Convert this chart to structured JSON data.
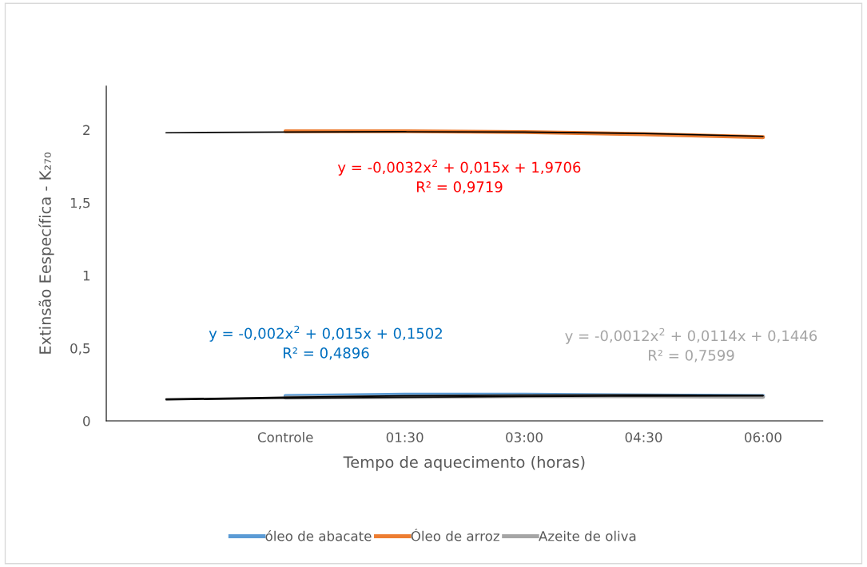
{
  "chart_data": {
    "type": "line",
    "xlabel": "Tempo de aquecimento (horas)",
    "ylabel": "Extinsão Eespecífica - K₂₇₀",
    "categories": [
      null,
      "Controle",
      "01:30",
      "03:00",
      "04:30",
      "06:00"
    ],
    "series": [
      {
        "name": "óleo de abacate",
        "color": "#5b9bd5",
        "values": [
          null,
          0.17,
          0.18,
          0.18,
          0.175,
          0.17
        ]
      },
      {
        "name": "Óleo de arroz",
        "color": "#ed7d31",
        "values": [
          null,
          1.99,
          1.99,
          1.985,
          1.97,
          1.95
        ]
      },
      {
        "name": "Azeite de oliva",
        "color": "#a5a5a5",
        "values": [
          null,
          0.16,
          0.165,
          0.17,
          0.17,
          0.165
        ]
      },
      {
        "type": "line",
        "color": "#000000",
        "values": [
          0.15,
          0.163,
          0.172,
          0.177,
          0.178,
          0.175
        ]
      },
      {
        "type": "line",
        "color": "#000000",
        "values": [
          1.98,
          1.985,
          1.987,
          1.985,
          1.975,
          1.955
        ]
      },
      {
        "type": "line",
        "color": "#000000",
        "values": [
          0.145,
          0.155,
          0.163,
          0.168,
          0.171,
          0.172
        ]
      }
    ],
    "ylim": [
      0,
      2.3
    ],
    "yticks": [
      0,
      {
        "value": 0.5,
        "label": "0,5"
      },
      1,
      {
        "value": 1.5,
        "label": "1,5"
      },
      2
    ],
    "grid": false,
    "legend": "bottom",
    "marker": "none",
    "line_style": "solid",
    "annotations": [
      "y = -0,0032x$^{2}$ + 0,015x + 1,9706\nR² = 0,9719",
      "y = -0,002x$^{2}$ + 0,015x + 0,1502\nR² = 0,4896",
      "y = -0,0012x$^{2}$ + 0,0114x + 0,1446\nR² = 0,7599"
    ]
  }
}
